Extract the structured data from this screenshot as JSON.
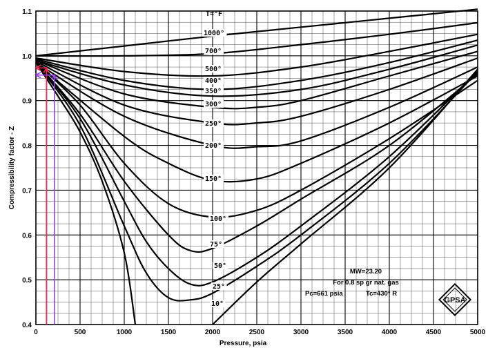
{
  "chart_data": {
    "type": "line",
    "xlabel": "Pressure, psia",
    "ylabel": "Compressibility factor - Z",
    "xlim": [
      0,
      5000
    ],
    "ylim": [
      0.4,
      1.1
    ],
    "x_ticks": [
      0,
      500,
      1000,
      1500,
      2000,
      2500,
      3000,
      3500,
      4000,
      4500,
      5000
    ],
    "y_ticks": [
      0.4,
      0.5,
      0.6,
      0.7,
      0.8,
      0.9,
      1.0,
      1.1
    ],
    "grid": true,
    "series": [
      {
        "name": "1000°",
        "x": [
          0,
          1000,
          2000,
          3000,
          4000,
          5000
        ],
        "y": [
          1.0,
          1.022,
          1.044,
          1.064,
          1.084,
          1.104
        ]
      },
      {
        "name": "700°",
        "x": [
          0,
          1000,
          2000,
          3000,
          4000,
          5000
        ],
        "y": [
          1.0,
          1.0,
          1.005,
          1.025,
          1.048,
          1.074
        ]
      },
      {
        "name": "500°",
        "x": [
          0,
          1000,
          2000,
          3000,
          4000,
          5000
        ],
        "y": [
          0.995,
          0.965,
          0.955,
          0.975,
          1.01,
          1.048
        ]
      },
      {
        "name": "400°",
        "x": [
          0,
          1000,
          2000,
          3000,
          4000,
          5000
        ],
        "y": [
          0.993,
          0.945,
          0.925,
          0.945,
          0.985,
          1.035
        ]
      },
      {
        "name": "350°",
        "x": [
          0,
          1000,
          2000,
          3000,
          4000,
          5000
        ],
        "y": [
          0.99,
          0.935,
          0.91,
          0.925,
          0.97,
          1.024
        ]
      },
      {
        "name": "300°",
        "x": [
          0,
          1000,
          2000,
          2500,
          3000,
          4000,
          5000
        ],
        "y": [
          0.99,
          0.915,
          0.885,
          0.885,
          0.9,
          0.955,
          1.01
        ]
      },
      {
        "name": "250°",
        "x": [
          0,
          1000,
          2000,
          2500,
          3000,
          4000,
          5000
        ],
        "y": [
          0.988,
          0.89,
          0.85,
          0.85,
          0.865,
          0.925,
          0.995
        ]
      },
      {
        "name": "200°",
        "x": [
          0,
          1000,
          2000,
          2500,
          3000,
          4000,
          5000
        ],
        "y": [
          0.985,
          0.865,
          0.8,
          0.797,
          0.81,
          0.885,
          0.975
        ]
      },
      {
        "name": "150°",
        "x": [
          0,
          1000,
          1500,
          2000,
          2500,
          3000,
          4000,
          5000
        ],
        "y": [
          0.985,
          0.82,
          0.76,
          0.722,
          0.725,
          0.76,
          0.85,
          0.955
        ]
      },
      {
        "name": "100°",
        "x": [
          0,
          500,
          1000,
          1500,
          2000,
          2500,
          3000,
          4000,
          5000
        ],
        "y": [
          0.985,
          0.89,
          0.76,
          0.67,
          0.64,
          0.655,
          0.7,
          0.815,
          0.945
        ]
      },
      {
        "name": "75°",
        "x": [
          0,
          500,
          1000,
          1500,
          1750,
          2000,
          2500,
          3000,
          4000,
          5000
        ],
        "y": [
          0.985,
          0.87,
          0.72,
          0.6,
          0.565,
          0.57,
          0.62,
          0.68,
          0.8,
          0.96
        ]
      },
      {
        "name": "50°",
        "x": [
          0,
          500,
          1000,
          1250,
          1500,
          1750,
          2000,
          2500,
          3000,
          4000,
          5000
        ],
        "y": [
          0.985,
          0.86,
          0.675,
          0.585,
          0.525,
          0.49,
          0.495,
          0.55,
          0.62,
          0.775,
          0.965
        ]
      },
      {
        "name": "25°",
        "x": [
          0,
          500,
          1000,
          1250,
          1500,
          1750,
          2000,
          2500,
          3000,
          4000,
          5000
        ],
        "y": [
          0.985,
          0.845,
          0.62,
          0.515,
          0.46,
          0.455,
          0.47,
          0.53,
          0.6,
          0.76,
          0.965
        ]
      },
      {
        "name": "10°",
        "x": [
          0,
          250,
          500,
          750,
          1000,
          1125,
          2000,
          2500,
          3000,
          4000,
          5000
        ],
        "y": [
          0.985,
          0.91,
          0.83,
          0.72,
          0.56,
          0.4,
          0.4,
          0.495,
          0.58,
          0.75,
          0.97
        ]
      }
    ],
    "curve_header": "T=°F",
    "annotations": {
      "mw": "MW=23.20",
      "gas": "For 0.8 sp gr  nat. gas",
      "pc": "Pc=661 psia",
      "tc": "Tc=430° R"
    },
    "markers": [
      {
        "x": 120,
        "y_top": 0.973,
        "color": "#ff2050"
      },
      {
        "x": 210,
        "y_top": 0.957,
        "color": "#9a3ff0"
      }
    ],
    "logo": "GPSA"
  }
}
